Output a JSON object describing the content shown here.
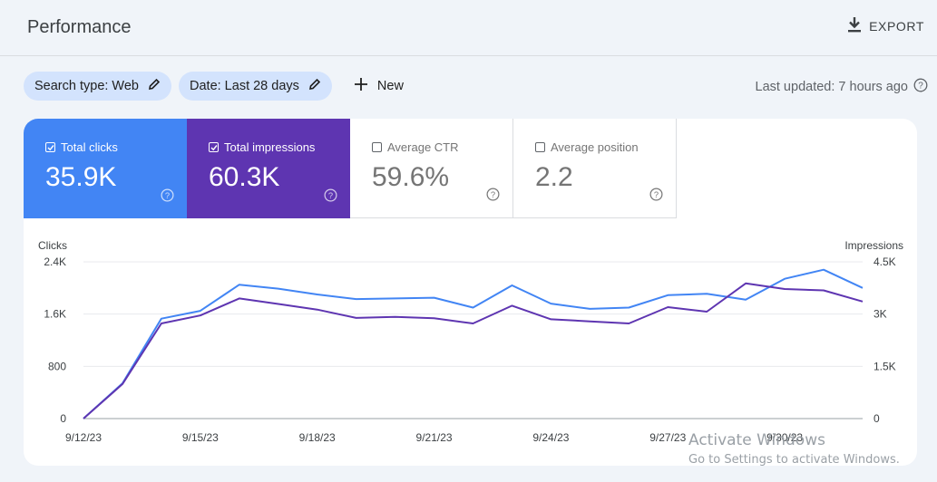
{
  "header": {
    "title": "Performance",
    "export_label": "EXPORT"
  },
  "filters": {
    "search_type": "Search type: Web",
    "date": "Date: Last 28 days",
    "new_label": "New"
  },
  "last_updated": "Last updated: 7 hours ago",
  "metrics": [
    {
      "label": "Total clicks",
      "value": "35.9K",
      "checked": true,
      "color": "#4285f4"
    },
    {
      "label": "Total impressions",
      "value": "60.3K",
      "checked": true,
      "color": "#5e35b1"
    },
    {
      "label": "Average CTR",
      "value": "59.6%",
      "checked": false
    },
    {
      "label": "Average position",
      "value": "2.2",
      "checked": false
    }
  ],
  "chart_data": {
    "type": "line",
    "left_axis_title": "Clicks",
    "right_axis_title": "Impressions",
    "left_ticks": [
      "0",
      "800",
      "1.6K",
      "2.4K"
    ],
    "right_ticks": [
      "0",
      "1.5K",
      "3K",
      "4.5K"
    ],
    "left_ylim": [
      0,
      2400
    ],
    "right_ylim": [
      0,
      4500
    ],
    "x_tick_labels": [
      "9/12/23",
      "9/15/23",
      "9/18/23",
      "9/21/23",
      "9/24/23",
      "9/27/23",
      "9/30/23"
    ],
    "x": [
      "9/12/23",
      "9/13/23",
      "9/14/23",
      "9/15/23",
      "9/16/23",
      "9/17/23",
      "9/18/23",
      "9/19/23",
      "9/20/23",
      "9/21/23",
      "9/22/23",
      "9/23/23",
      "9/24/23",
      "9/25/23",
      "9/26/23",
      "9/27/23",
      "9/28/23",
      "9/29/23",
      "9/30/23",
      "10/1/23",
      "10/2/23"
    ],
    "series": [
      {
        "name": "Clicks",
        "axis": "left",
        "color": "#4285f4",
        "values": [
          0,
          540,
          1530,
          1650,
          2050,
          1990,
          1900,
          1830,
          1840,
          1850,
          1700,
          2040,
          1760,
          1680,
          1700,
          1890,
          1910,
          1820,
          2140,
          2280,
          2000
        ]
      },
      {
        "name": "Impressions",
        "axis": "left_scaled_to_right",
        "color": "#5e35b1",
        "values": [
          0,
          990,
          2730,
          2960,
          3450,
          3290,
          3130,
          2890,
          2920,
          2880,
          2730,
          3240,
          2850,
          2790,
          2730,
          3200,
          3070,
          3880,
          3720,
          3680,
          3360
        ]
      }
    ],
    "grid": true,
    "legend": "none"
  },
  "watermark": {
    "line1": "Activate Windows",
    "line2": "Go to Settings to activate Windows."
  }
}
